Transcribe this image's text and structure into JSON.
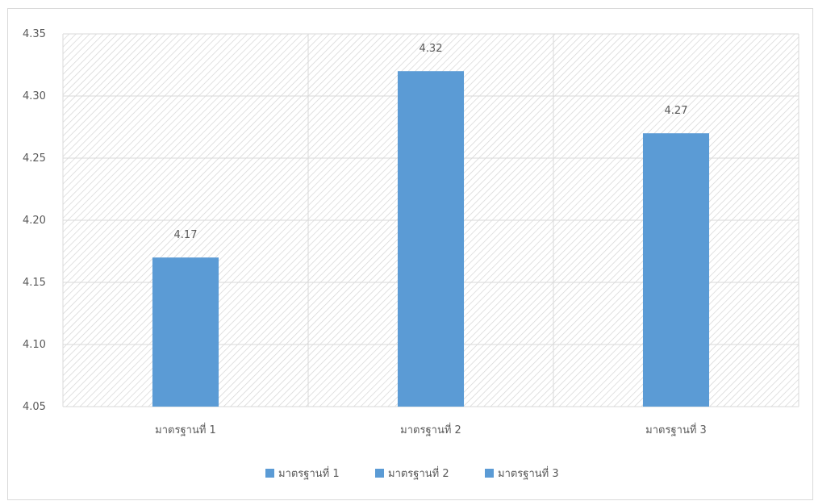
{
  "chart_data": {
    "type": "bar",
    "categories": [
      "มาตรฐานที่ 1",
      "มาตรฐานที่ 2",
      "มาตรฐานที่ 3"
    ],
    "series": [
      {
        "name": "มาตรฐานที่ 1",
        "values": [
          4.17,
          null,
          null
        ]
      },
      {
        "name": "มาตรฐานที่ 2",
        "values": [
          null,
          4.32,
          null
        ]
      },
      {
        "name": "มาตรฐานที่ 3",
        "values": [
          null,
          null,
          4.27
        ]
      }
    ],
    "values": [
      4.17,
      4.32,
      4.27
    ],
    "data_labels": [
      "4.17",
      "4.32",
      "4.27"
    ],
    "ylim": [
      4.05,
      4.35
    ],
    "yticks": [
      4.05,
      4.1,
      4.15,
      4.2,
      4.25,
      4.3,
      4.35
    ],
    "ytick_labels": [
      "4.05",
      "4.10",
      "4.15",
      "4.20",
      "4.25",
      "4.30",
      "4.35"
    ],
    "grid": true,
    "legend_position": "bottom",
    "legend": [
      "มาตรฐานที่ 1",
      "มาตรฐานที่ 2",
      "มาตรฐานที่ 3"
    ],
    "colors": {
      "bar": "#5b9bd5",
      "grid": "#d9d9d9",
      "hatch": "#d9d9d9",
      "text": "#595959"
    }
  }
}
